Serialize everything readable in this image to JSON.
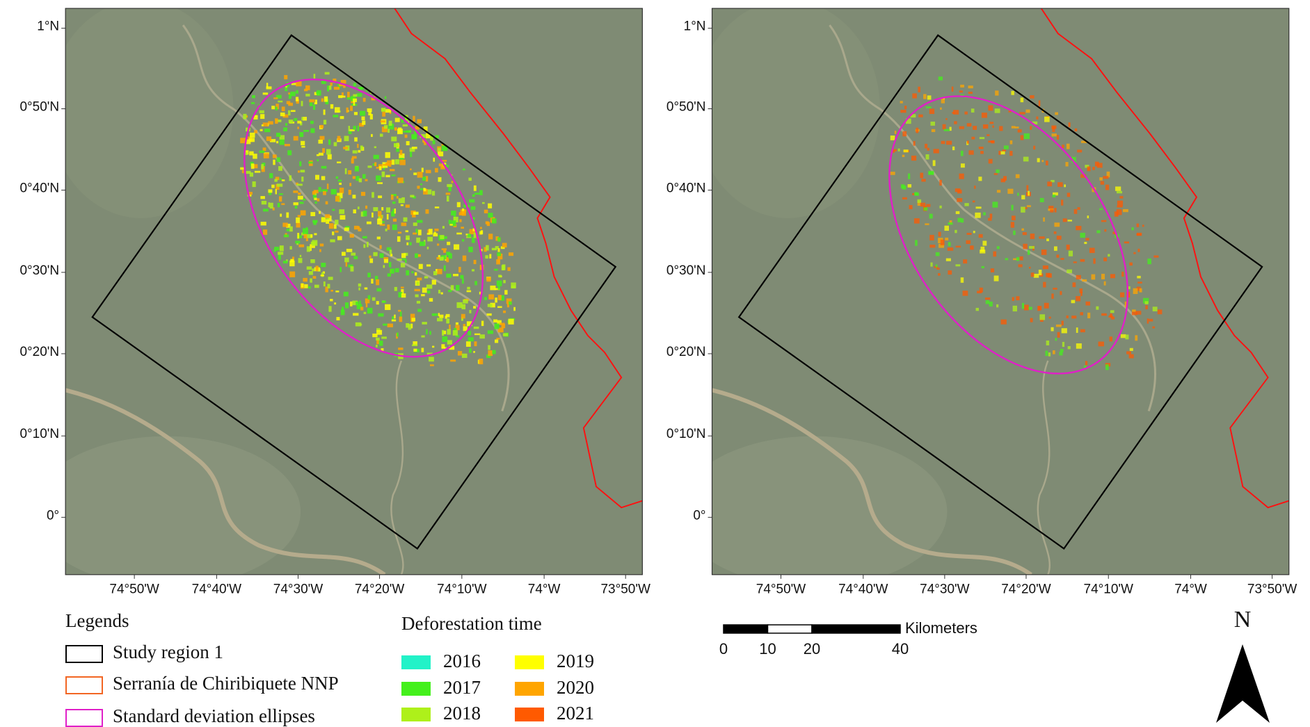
{
  "maps": [
    {
      "lat_labels": [
        "1°N",
        "0°50'N",
        "0°40'N",
        "0°30'N",
        "0°20'N",
        "0°10'N",
        "0°"
      ],
      "lon_labels": [
        "74°50'W",
        "74°40'W",
        "74°30'W",
        "74°20'W",
        "74°10'W",
        "74°W",
        "73°50'W"
      ]
    },
    {
      "lat_labels": [
        "1°N",
        "0°50'N",
        "0°40'N",
        "0°30'N",
        "0°20'N",
        "0°10'N",
        "0°"
      ],
      "lon_labels": [
        "74°50'W",
        "74°40'W",
        "74°30'W",
        "74°20'W",
        "74°10'W",
        "74°W",
        "73°50'W"
      ]
    }
  ],
  "legend": {
    "title": "Legends",
    "items": [
      {
        "label": "Study region 1",
        "color": "#000000"
      },
      {
        "label": "Serranía de Chiribiquete NNP",
        "color": "#f26522"
      },
      {
        "label": "Standard deviation ellipses",
        "color": "#e020c8"
      }
    ]
  },
  "deforestation": {
    "title": "Deforestation time",
    "items": [
      {
        "label": "2016",
        "color": "#22f2c8"
      },
      {
        "label": "2017",
        "color": "#44f01c"
      },
      {
        "label": "2018",
        "color": "#aef01a"
      },
      {
        "label": "2019",
        "color": "#ffff00"
      },
      {
        "label": "2020",
        "color": "#ffa500"
      },
      {
        "label": "2021",
        "color": "#ff5a00"
      }
    ]
  },
  "scale_bar": {
    "unit": "Kilometers",
    "ticks": [
      0,
      10,
      20,
      40
    ]
  },
  "north_arrow": "N"
}
